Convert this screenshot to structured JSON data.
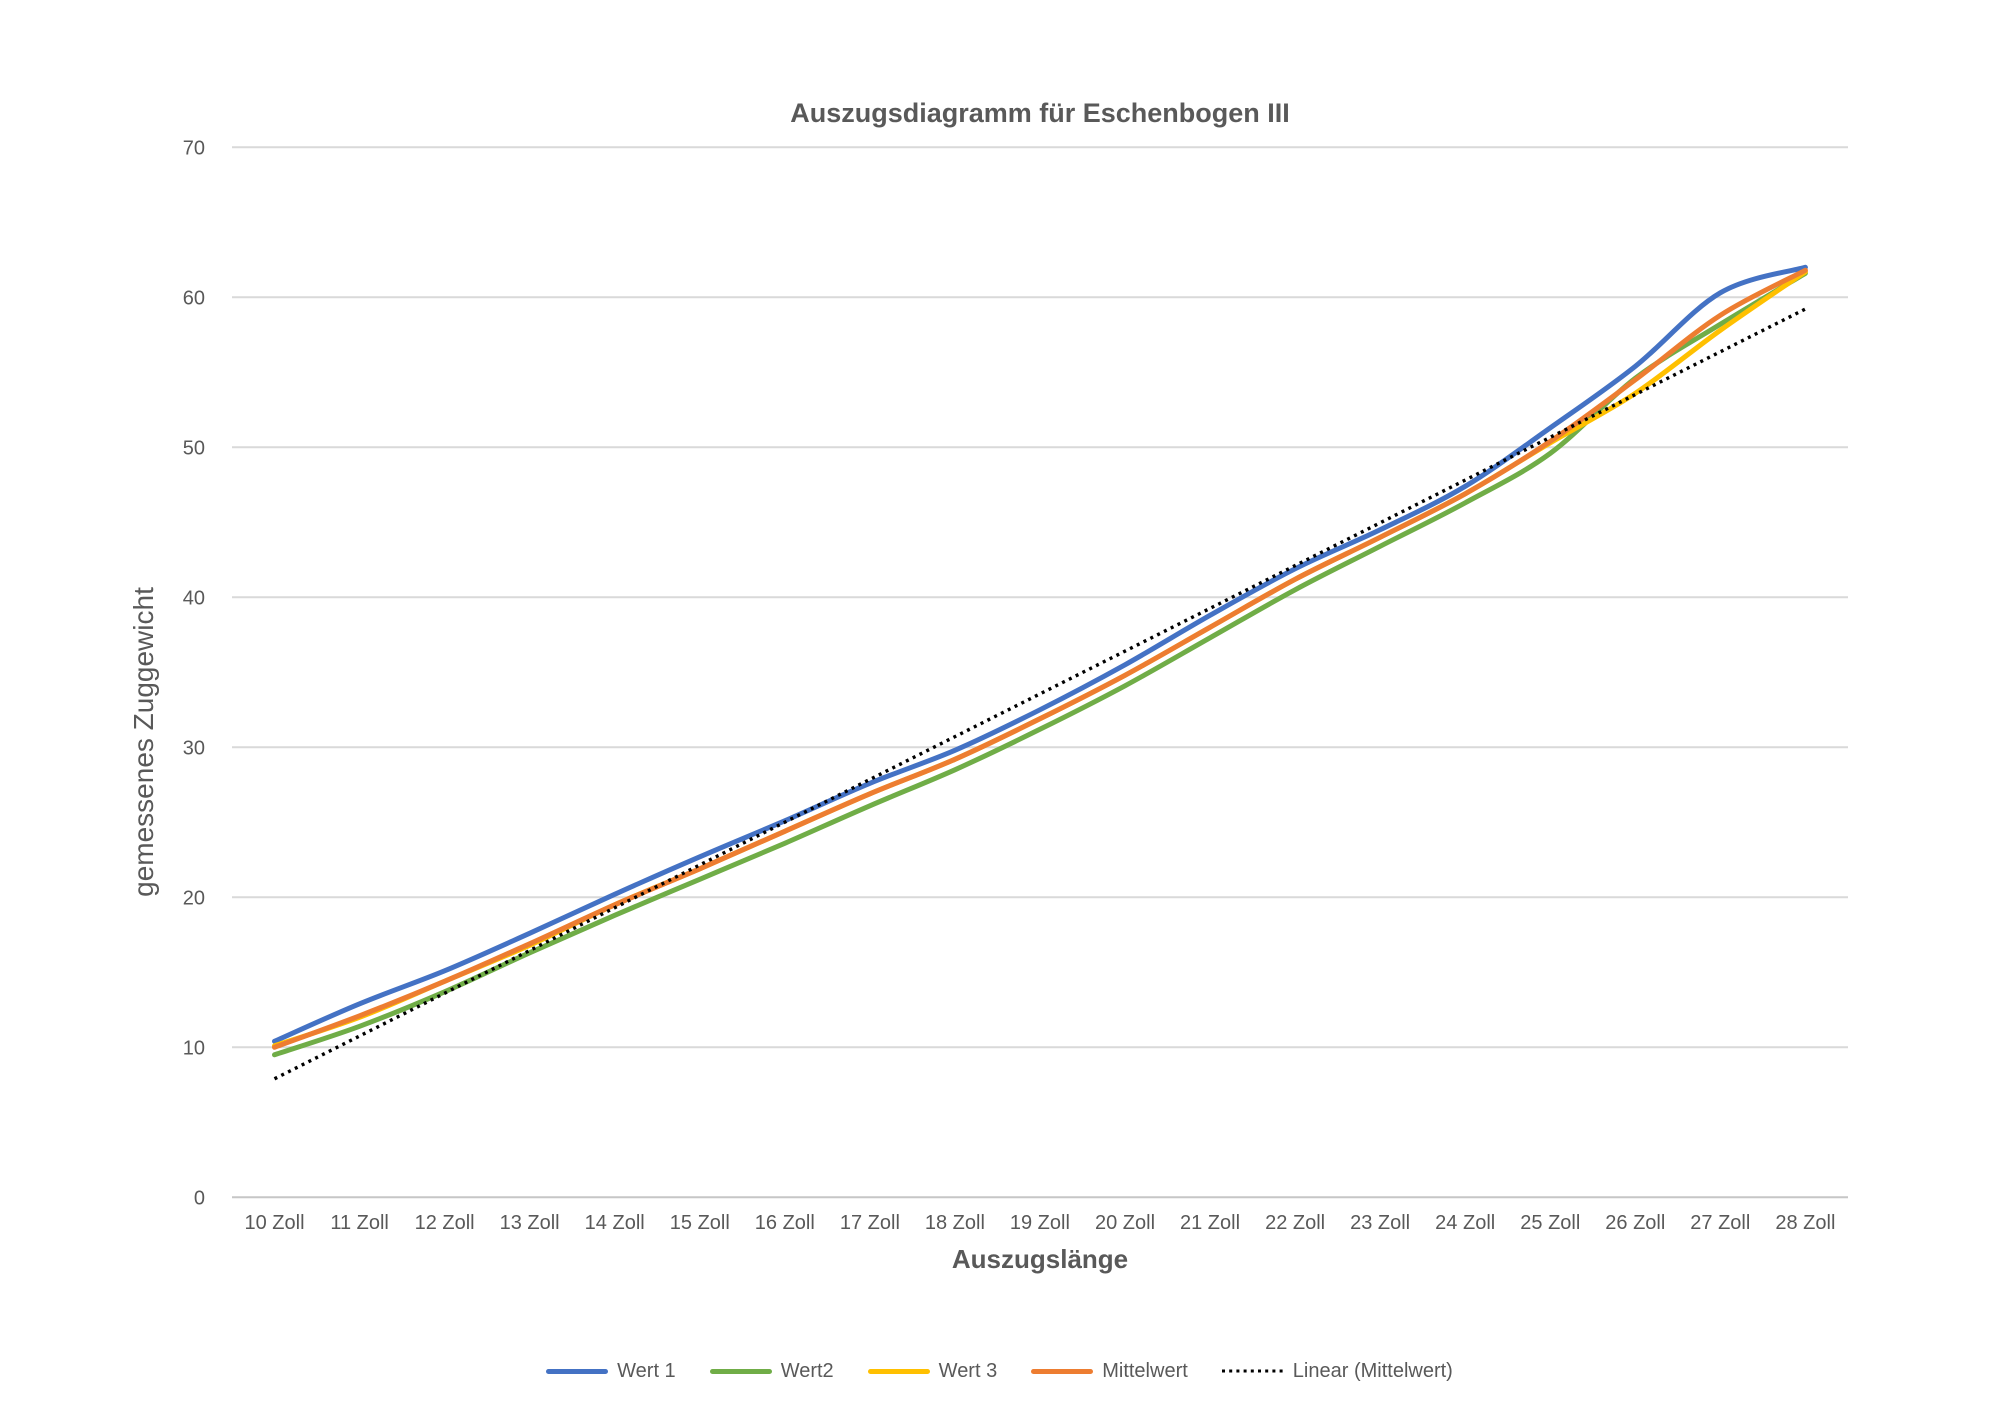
{
  "chart_data": {
    "type": "line",
    "title": "Auszugsdiagramm für Eschenbogen III",
    "xlabel": "Auszugslänge",
    "ylabel": "gemessenes Zuggewicht",
    "categories": [
      "10 Zoll",
      "11 Zoll",
      "12 Zoll",
      "13 Zoll",
      "14 Zoll",
      "15 Zoll",
      "16 Zoll",
      "17 Zoll",
      "18 Zoll",
      "19 Zoll",
      "20 Zoll",
      "21 Zoll",
      "22 Zoll",
      "23 Zoll",
      "24 Zoll",
      "25 Zoll",
      "26 Zoll",
      "27 Zoll",
      "28 Zoll"
    ],
    "y_ticks": [
      0,
      10,
      20,
      30,
      40,
      50,
      60,
      70
    ],
    "ylim": [
      0,
      70
    ],
    "grid": "horizontal-only",
    "gridline_color": "#d9d9d9",
    "axis_line_color": "#c6c6c6",
    "text_color": "#595959",
    "legend_position": "bottom",
    "series": [
      {
        "name": "Wert 1",
        "color": "#4472C4",
        "style": "solid",
        "smooth": true,
        "values": [
          10.4,
          12.9,
          15.1,
          17.6,
          20.2,
          22.7,
          25.1,
          27.6,
          29.8,
          32.5,
          35.5,
          38.8,
          41.9,
          44.5,
          47.4,
          51.3,
          55.4,
          60.3,
          62.0
        ]
      },
      {
        "name": "Wert2",
        "color": "#70AD47",
        "style": "solid",
        "smooth": true,
        "values": [
          9.5,
          11.4,
          13.7,
          16.3,
          18.8,
          21.2,
          23.6,
          26.1,
          28.5,
          31.2,
          34.1,
          37.3,
          40.5,
          43.4,
          46.3,
          49.6,
          54.6,
          58.2,
          61.6
        ]
      },
      {
        "name": "Wert 3",
        "color": "#FFC000",
        "style": "solid",
        "smooth": true,
        "values": [
          10.1,
          12.0,
          14.4,
          16.8,
          19.5,
          21.9,
          24.4,
          26.9,
          29.2,
          31.9,
          34.8,
          38.0,
          41.2,
          44.0,
          46.9,
          50.3,
          53.6,
          57.8,
          61.7
        ]
      },
      {
        "name": "Mittelwert",
        "color": "#ED7D31",
        "style": "solid",
        "smooth": true,
        "values": [
          10.0,
          12.1,
          14.4,
          16.9,
          19.5,
          21.9,
          24.4,
          26.9,
          29.2,
          31.9,
          34.8,
          38.0,
          41.2,
          44.0,
          46.9,
          50.4,
          54.5,
          58.8,
          61.8
        ]
      },
      {
        "name": "Linear (Mittelwert)",
        "color": "#000000",
        "style": "dotted",
        "linear": true,
        "values": [
          7.9,
          10.75,
          13.6,
          16.45,
          19.3,
          22.16,
          25.01,
          27.86,
          30.71,
          33.56,
          36.41,
          39.26,
          42.11,
          44.96,
          47.81,
          50.67,
          53.52,
          56.37,
          59.22
        ]
      }
    ]
  }
}
